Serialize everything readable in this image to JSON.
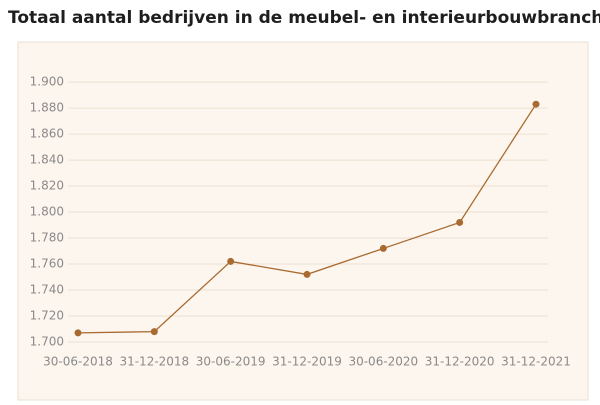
{
  "chart_data": {
    "type": "line",
    "title": "Totaal aantal bedrijven in de meubel- en interieurbouwbranche",
    "categories": [
      "30-06-2018",
      "31-12-2018",
      "30-06-2019",
      "31-12-2019",
      "30-06-2020",
      "31-12-2020",
      "31-12-2021"
    ],
    "series": [
      {
        "name": "Totaal aantal bedrijven",
        "color": "#a86a30",
        "values": [
          1707,
          1708,
          1762,
          1752,
          1772,
          1792,
          1883
        ]
      }
    ],
    "ylim": [
      1700,
      1907
    ],
    "yticks": [
      {
        "value": 1700,
        "label": "1.700"
      },
      {
        "value": 1720,
        "label": "1.720"
      },
      {
        "value": 1740,
        "label": "1.740"
      },
      {
        "value": 1760,
        "label": "1.760"
      },
      {
        "value": 1780,
        "label": "1.780"
      },
      {
        "value": 1800,
        "label": "1.800"
      },
      {
        "value": 1820,
        "label": "1.820"
      },
      {
        "value": 1840,
        "label": "1.840"
      },
      {
        "value": 1860,
        "label": "1.860"
      },
      {
        "value": 1880,
        "label": "1.880"
      },
      {
        "value": 1900,
        "label": "1.900"
      }
    ],
    "grid": true
  }
}
